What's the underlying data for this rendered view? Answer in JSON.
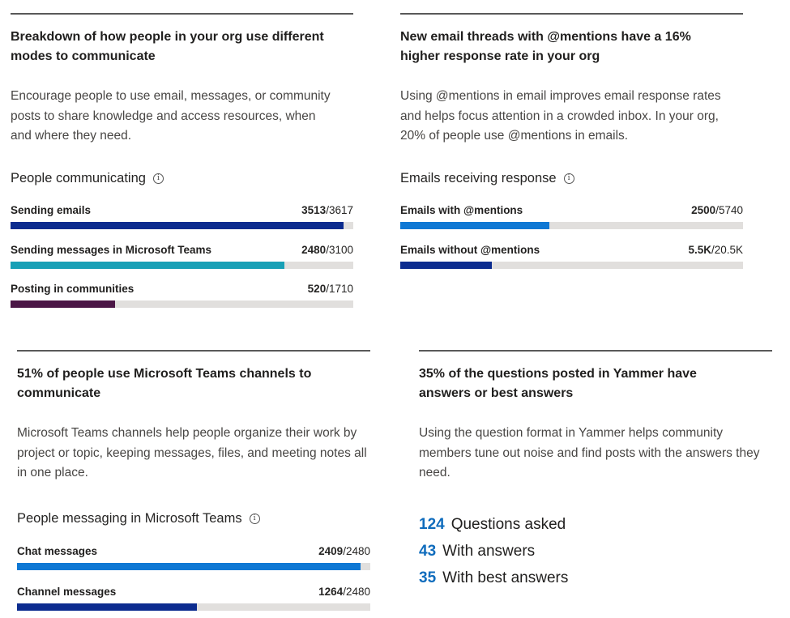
{
  "colors": {
    "navy": "#0c2c8f",
    "teal": "#18a0b6",
    "plum": "#4b1646",
    "blue": "#0f78d4",
    "track": "#e1dfdd",
    "stat_blue": "#0f6cbd"
  },
  "cards": {
    "comm": {
      "title": "Breakdown of how people in your org use different modes to communicate",
      "description": "Encourage people to use email, messages, or community posts to share knowledge and access resources, when and where they need.",
      "section": "People communicating",
      "info_icon": "info-icon",
      "rows": [
        {
          "label": "Sending emails",
          "value": "3513",
          "total": "/3617",
          "fraction": 0.9713,
          "color": "#0c2c8f"
        },
        {
          "label": "Sending messages in Microsoft Teams",
          "value": "2480",
          "total": "/3100",
          "fraction": 0.8,
          "color": "#18a0b6"
        },
        {
          "label": "Posting in communities",
          "value": "520",
          "total": "/1710",
          "fraction": 0.3041,
          "color": "#4b1646"
        }
      ]
    },
    "mentions": {
      "title": "New email threads with @mentions have a 16% higher response rate in your org",
      "description": "Using @mentions in email improves email response rates and helps focus attention in a crowded inbox. In your org, 20% of people use @mentions in emails.",
      "section": "Emails receiving response",
      "info_icon": "info-icon",
      "rows": [
        {
          "label": "Emails with @mentions",
          "value": "2500",
          "total": "/5740",
          "fraction": 0.4355,
          "color": "#0f78d4"
        },
        {
          "label": "Emails without @mentions",
          "value": "5.5K",
          "total": "/20.5K",
          "fraction": 0.2683,
          "color": "#0c2c8f"
        }
      ]
    },
    "teams": {
      "title": "51% of people use Microsoft Teams channels to communicate",
      "description": "Microsoft Teams channels help people organize their work by project or topic, keeping messages, files, and meeting notes all in one place.",
      "section": "People messaging in Microsoft Teams",
      "info_icon": "info-icon",
      "rows": [
        {
          "label": "Chat messages",
          "value": "2409",
          "total": "/2480",
          "fraction": 0.9714,
          "color": "#0f78d4"
        },
        {
          "label": "Channel messages",
          "value": "1264",
          "total": "/2480",
          "fraction": 0.5097,
          "color": "#0c2c8f"
        }
      ]
    },
    "yammer": {
      "title": "35% of the questions posted in Yammer have answers or best answers",
      "description": "Using the question format in Yammer helps community members tune out noise and find posts with the answers they need.",
      "stats": [
        {
          "number": "124",
          "label": "Questions asked"
        },
        {
          "number": "43",
          "label": "With answers"
        },
        {
          "number": "35",
          "label": "With best answers"
        }
      ]
    }
  }
}
